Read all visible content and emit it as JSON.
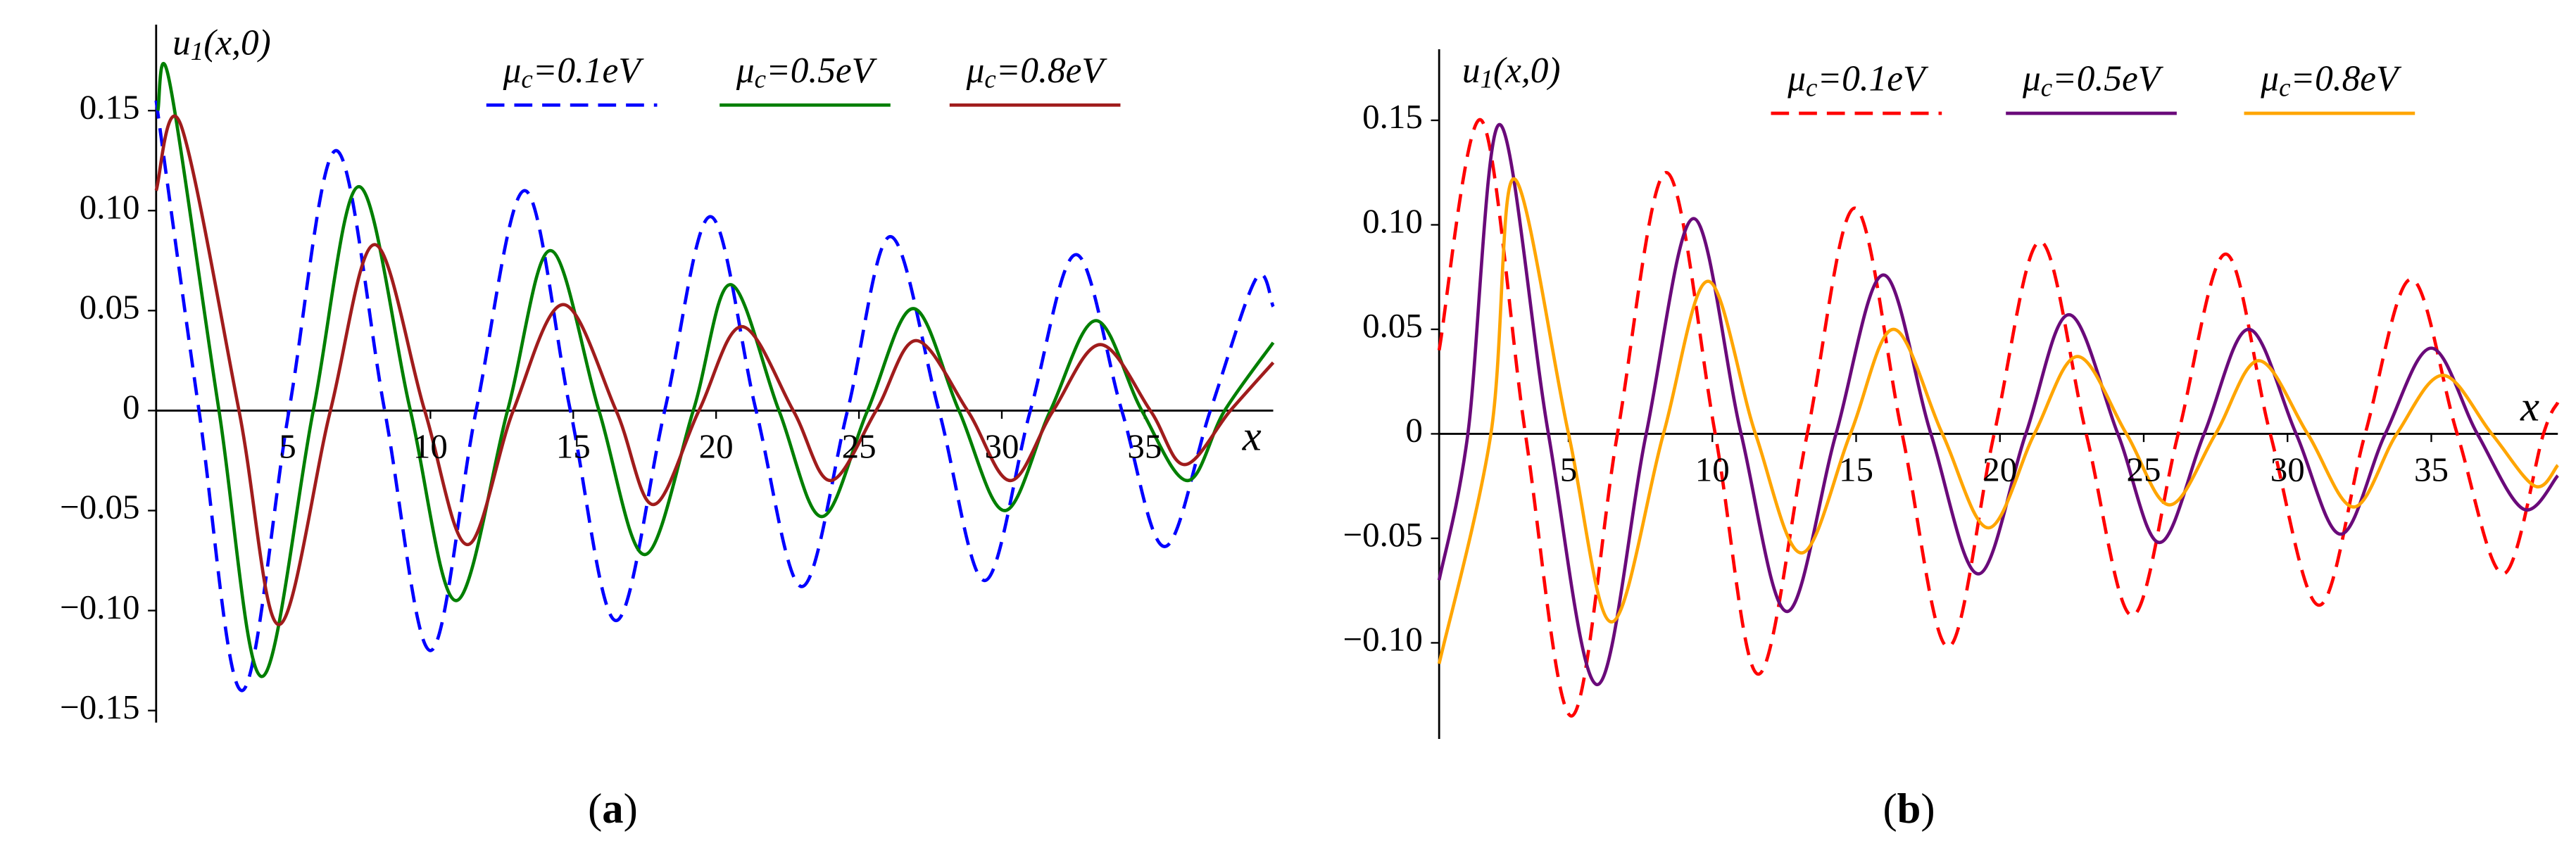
{
  "chart_data": [
    {
      "type": "line",
      "y_label": "u1(x,0)",
      "x_label": "x",
      "caption": "(a)",
      "legend": "top",
      "xlim": [
        0.4,
        39.5
      ],
      "ylim": [
        -0.156,
        0.193
      ],
      "xticks": [
        5,
        10,
        15,
        20,
        25,
        30,
        35
      ],
      "yticks": [
        {
          "value": -0.15,
          "label": "−0.15"
        },
        {
          "value": -0.1,
          "label": "−0.10"
        },
        {
          "value": -0.05,
          "label": "−0.05"
        },
        0,
        0.05,
        {
          "value": 0.1,
          "label": "0.10"
        },
        0.15
      ],
      "series": [
        {
          "name": "μc=0.1eV",
          "color": "#0000ff",
          "dashed": true,
          "x": [
            0.4,
            1.9,
            3.4,
            5.05,
            6.7,
            8.4,
            10.0,
            11.6,
            13.3,
            14.9,
            16.5,
            18.2,
            19.8,
            21.4,
            23.0,
            24.6,
            26.1,
            27.8,
            29.4,
            31.0,
            32.6,
            34.2,
            35.7,
            37.3,
            38.9,
            39.5
          ],
          "values": [
            0.155,
            0,
            -0.14,
            0,
            0.13,
            0,
            -0.12,
            0,
            0.11,
            0,
            -0.105,
            0,
            0.097,
            0,
            -0.088,
            0,
            0.087,
            0,
            -0.085,
            0,
            0.078,
            0,
            -0.068,
            0,
            0.066,
            0.052
          ]
        },
        {
          "name": "μc=0.5eV",
          "color": "#007f00",
          "dashed": false,
          "x": [
            0.46,
            0.86,
            2.6,
            4.1,
            5.9,
            7.5,
            9.3,
            10.9,
            12.7,
            14.2,
            15.9,
            17.5,
            19.2,
            20.5,
            22.2,
            23.7,
            25.3,
            26.9,
            28.5,
            30.1,
            31.7,
            33.3,
            34.9,
            36.5,
            37.8,
            39.5
          ],
          "values": [
            0.15,
            0.165,
            0,
            -0.133,
            0,
            0.112,
            0,
            -0.095,
            0,
            0.08,
            0,
            -0.072,
            0,
            0.063,
            0,
            -0.053,
            0,
            0.051,
            0,
            -0.05,
            0,
            0.045,
            0,
            -0.035,
            0,
            0.034
          ]
        },
        {
          "name": "μc=0.8eV",
          "color": "#a01c1c",
          "dashed": false,
          "x": [
            0.4,
            1.26,
            3.3,
            4.7,
            6.5,
            8.05,
            9.8,
            11.3,
            12.9,
            14.65,
            16.5,
            17.8,
            19.4,
            20.9,
            22.7,
            24.0,
            25.6,
            27.0,
            28.8,
            30.3,
            31.8,
            33.45,
            35.2,
            36.4,
            38.0,
            39.5
          ],
          "values": [
            0.11,
            0.143,
            0,
            -0.107,
            0,
            0.083,
            0,
            -0.067,
            0,
            0.053,
            0,
            -0.047,
            0,
            0.042,
            0,
            -0.035,
            0,
            0.035,
            0,
            -0.035,
            0,
            0.033,
            0,
            -0.027,
            0,
            0.024
          ]
        }
      ]
    },
    {
      "type": "line",
      "y_label": "u1(x,0)",
      "x_label": "x",
      "caption": "(b)",
      "legend": "top",
      "xlim": [
        0.5,
        39.4
      ],
      "ylim": [
        -0.146,
        0.184
      ],
      "xticks": [
        5,
        10,
        15,
        20,
        25,
        30,
        35
      ],
      "yticks": [
        {
          "value": -0.1,
          "label": "−0.10"
        },
        {
          "value": -0.05,
          "label": "−0.05"
        },
        0,
        0.05,
        {
          "value": 0.1,
          "label": "0.10"
        },
        0.15
      ],
      "series": [
        {
          "name": "μc=0.1eV",
          "color": "#ff0000",
          "dashed": true,
          "x": [
            0.5,
            1.97,
            3.5,
            5.1,
            6.7,
            8.4,
            10.1,
            11.6,
            13.3,
            14.95,
            16.6,
            18.2,
            19.8,
            21.4,
            23.0,
            24.6,
            26.2,
            27.85,
            29.4,
            31.1,
            32.7,
            34.3,
            35.9,
            37.5,
            38.9,
            39.4
          ],
          "values": [
            0.04,
            0.15,
            0,
            -0.135,
            0,
            0.125,
            0,
            -0.115,
            0,
            0.108,
            0,
            -0.102,
            0,
            0.092,
            0,
            -0.087,
            0,
            0.086,
            0,
            -0.082,
            0,
            0.074,
            0,
            -0.067,
            0,
            0.015
          ]
        },
        {
          "name": "μc=0.5eV",
          "color": "#6a0a7a",
          "dashed": false,
          "x": [
            0.5,
            1.5,
            2.6,
            4.3,
            6.0,
            7.7,
            9.35,
            11.0,
            12.6,
            14.3,
            15.95,
            17.6,
            19.25,
            20.9,
            22.4,
            24.1,
            25.55,
            27.1,
            28.65,
            30.3,
            31.85,
            33.4,
            35.0,
            36.6,
            38.2,
            39.4
          ],
          "values": [
            -0.07,
            0,
            0.148,
            0,
            -0.12,
            0,
            0.103,
            0,
            -0.085,
            0,
            0.076,
            0,
            -0.067,
            0,
            0.057,
            0,
            -0.052,
            0,
            0.05,
            0,
            -0.048,
            0,
            0.041,
            0,
            -0.036,
            -0.02
          ]
        },
        {
          "name": "μc=0.8eV",
          "color": "#ffa500",
          "dashed": false,
          "x": [
            0.5,
            2.3,
            3.1,
            5.0,
            6.5,
            8.3,
            9.85,
            11.5,
            13.1,
            14.8,
            16.3,
            18.0,
            19.6,
            21.2,
            22.7,
            24.4,
            25.9,
            27.5,
            29.0,
            30.7,
            32.3,
            33.8,
            35.4,
            37.1,
            38.6,
            39.4
          ],
          "values": [
            -0.11,
            0,
            0.122,
            0,
            -0.09,
            0,
            0.073,
            0,
            -0.057,
            0,
            0.05,
            0,
            -0.045,
            0,
            0.037,
            0,
            -0.034,
            0,
            0.035,
            0,
            -0.035,
            0,
            0.028,
            0,
            -0.025,
            -0.015
          ]
        }
      ]
    }
  ]
}
